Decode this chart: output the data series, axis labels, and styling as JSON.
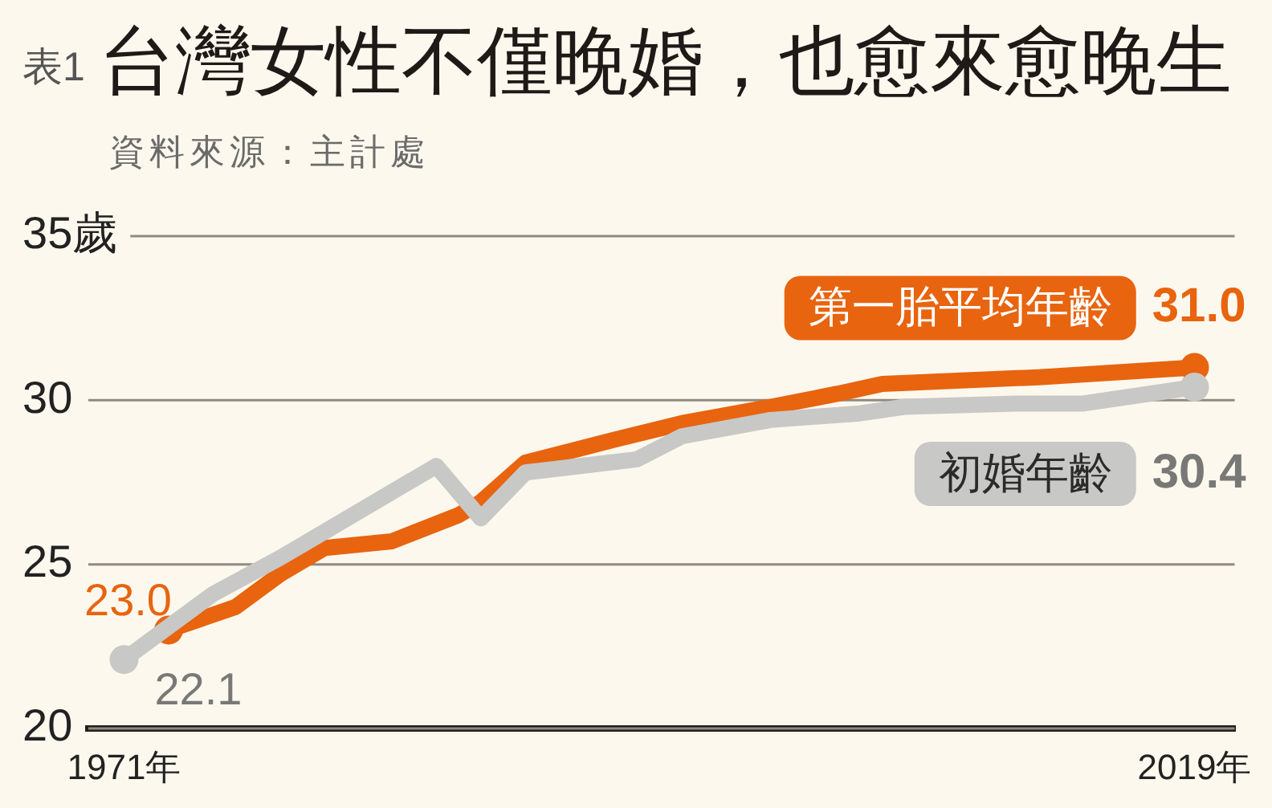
{
  "chart_data": {
    "type": "line",
    "title": "台灣女性不僅晚婚，也愈來愈晚生",
    "annotations": [
      "表1",
      "資料來源：主計處"
    ],
    "series": [
      {
        "name": "第一胎平均年齡",
        "color": "#e8640f",
        "x": [
          1973,
          1976,
          1978,
          1980,
          1983,
          1986,
          1987,
          1989,
          1993,
          1996,
          2000,
          2003,
          2005,
          2012,
          2019
        ],
        "values": [
          23.0,
          23.7,
          24.7,
          25.5,
          25.7,
          26.5,
          26.9,
          28.1,
          28.8,
          29.3,
          29.8,
          30.2,
          30.5,
          30.7,
          31.0
        ],
        "value_labels": [
          "23.0",
          null,
          null,
          null,
          null,
          null,
          null,
          null,
          null,
          null,
          null,
          null,
          null,
          null,
          "31.0"
        ]
      },
      {
        "name": "初婚年齡",
        "color": "#c8c8c6",
        "x": [
          1971,
          1973,
          1975,
          1978,
          1980,
          1985,
          1987,
          1989,
          1994,
          1996,
          2000,
          2004,
          2006,
          2011,
          2014,
          2019
        ],
        "values": [
          22.1,
          23.1,
          24.1,
          25.2,
          26.0,
          28.0,
          26.4,
          27.8,
          28.2,
          28.9,
          29.4,
          29.6,
          29.8,
          29.9,
          29.9,
          30.4
        ],
        "value_labels": [
          "22.1",
          null,
          null,
          null,
          null,
          null,
          null,
          null,
          null,
          null,
          null,
          null,
          null,
          null,
          null,
          "30.4"
        ]
      }
    ],
    "xlim": [
      1969.4,
      2020.8
    ],
    "xticks": [
      {
        "value": 1971,
        "label": "1971年"
      },
      {
        "value": 2019,
        "label": "2019年"
      }
    ],
    "ylim": [
      20,
      35
    ],
    "yticks": [
      20,
      25,
      30,
      {
        "value": 35,
        "label": "35歲"
      }
    ],
    "grid": "y"
  }
}
